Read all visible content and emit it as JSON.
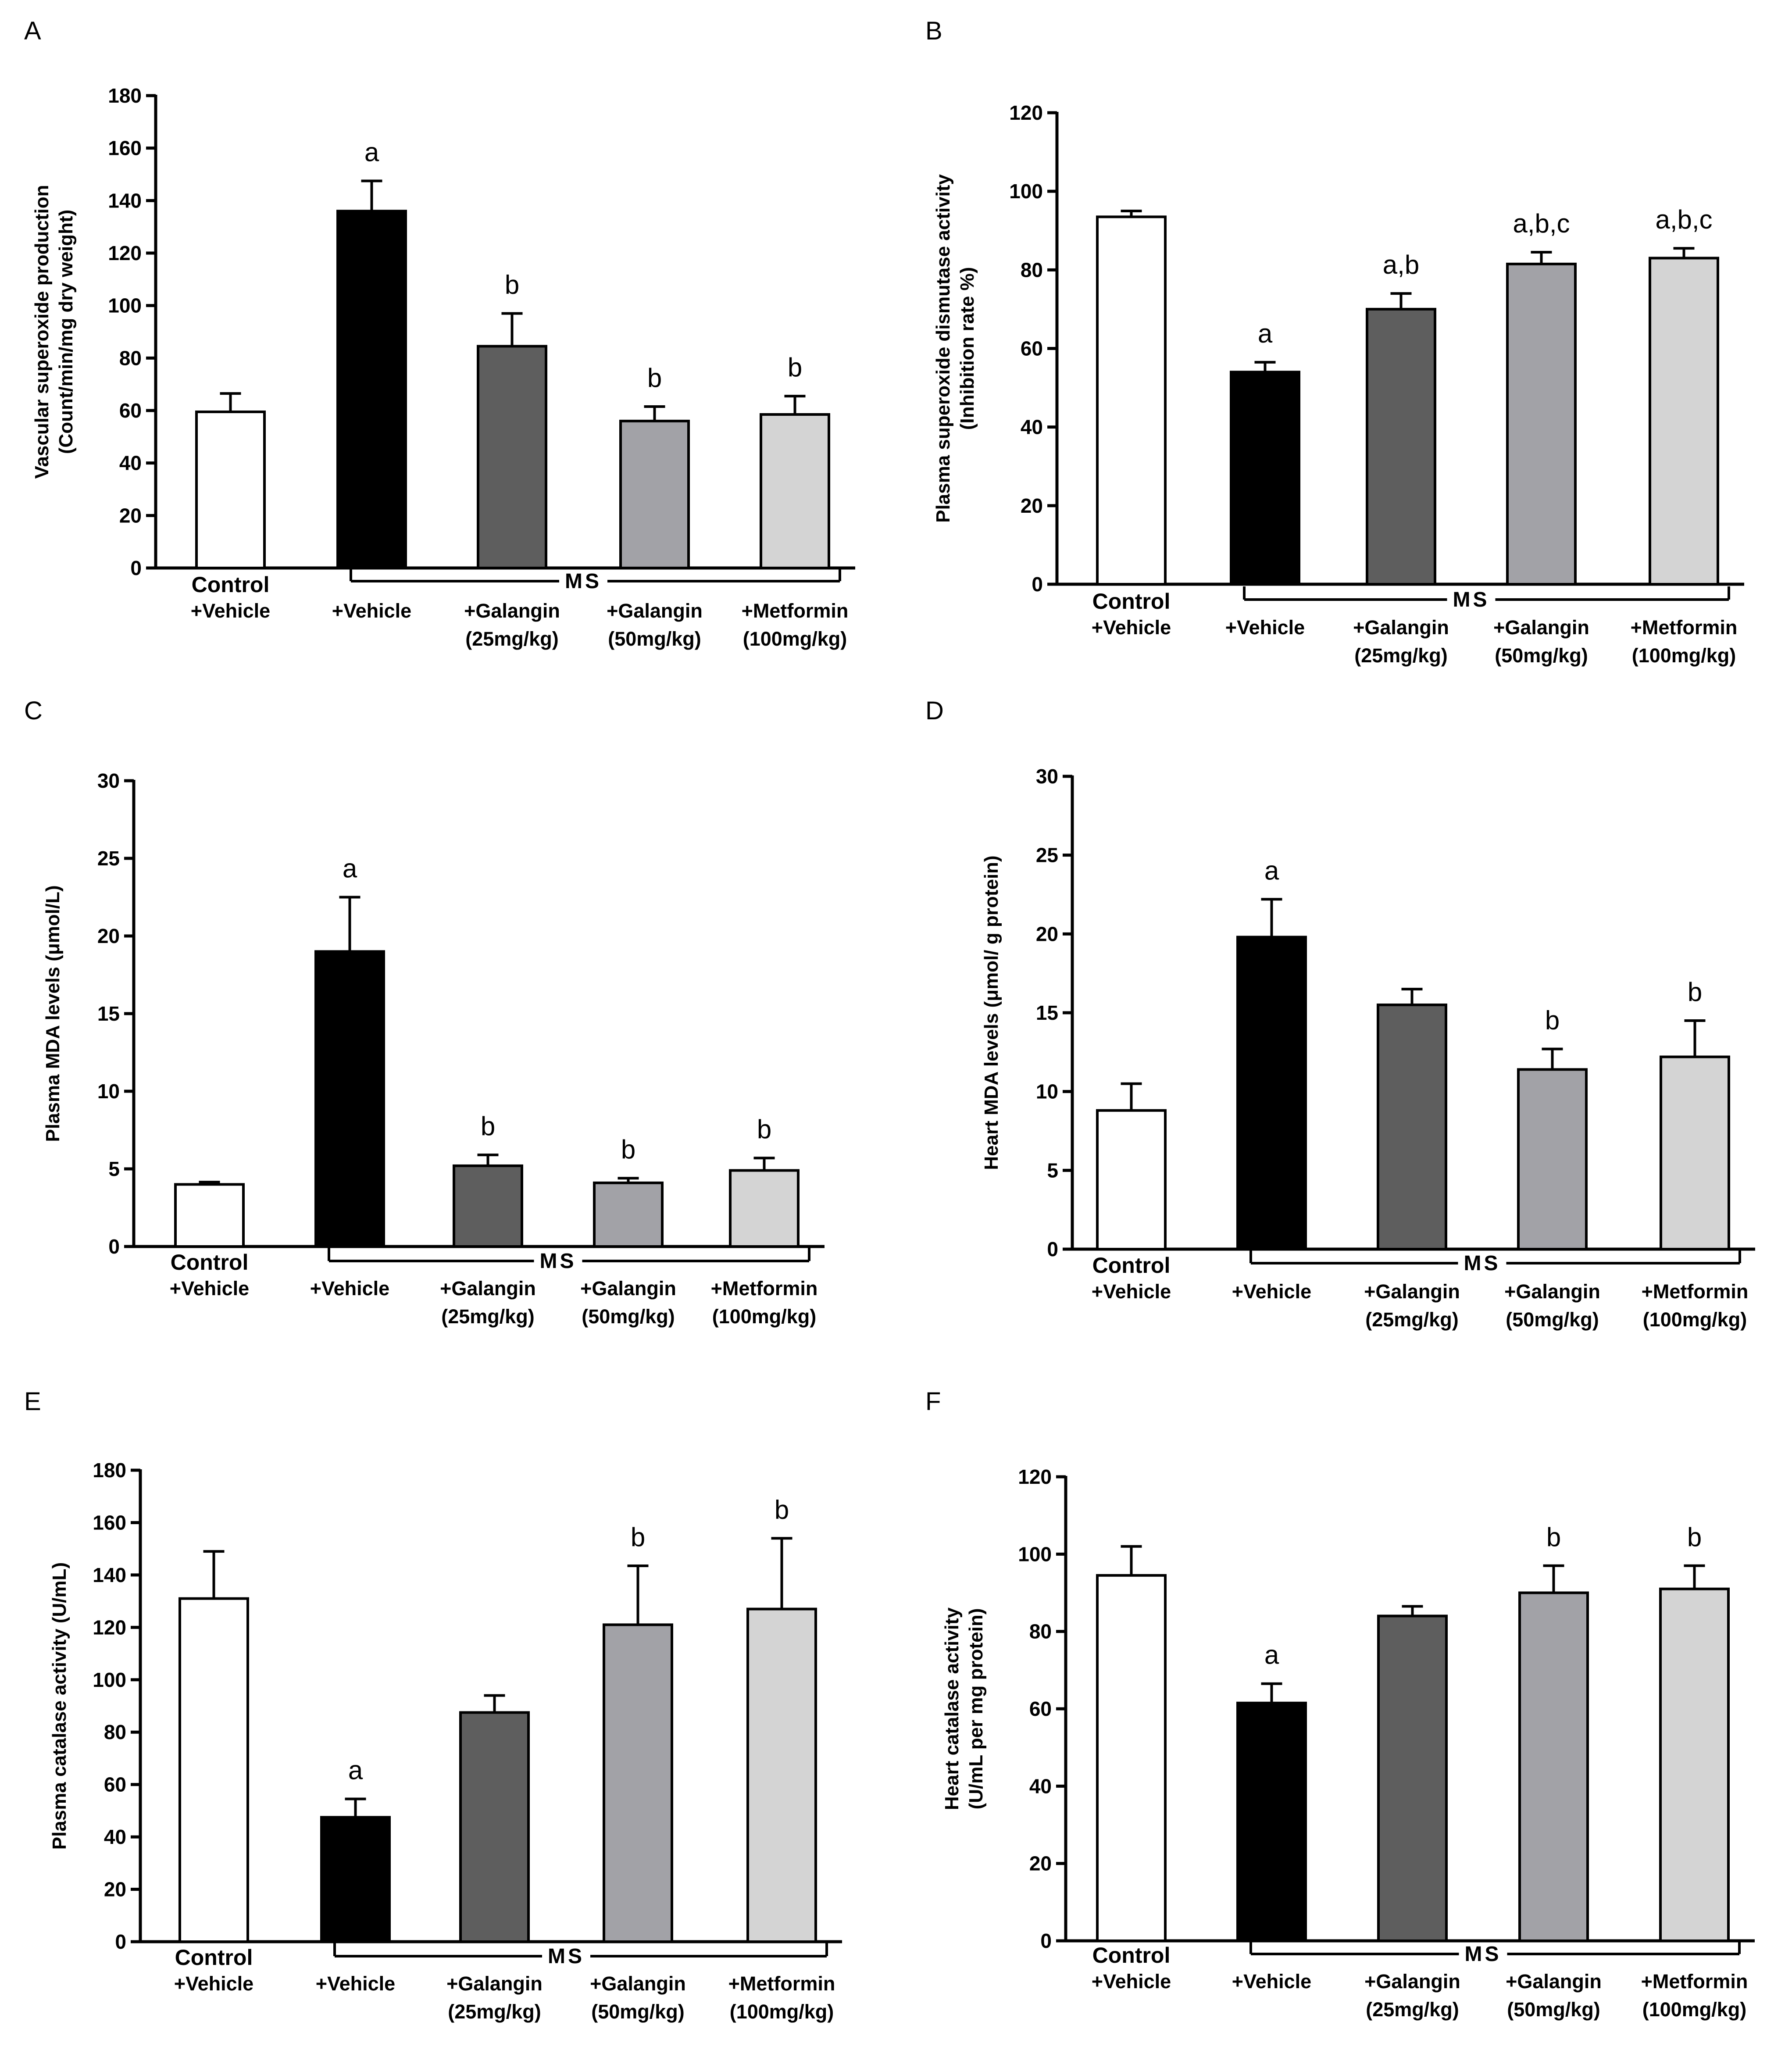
{
  "figure": {
    "ms_label": "MS",
    "groups": [
      {
        "line1": "Control",
        "line2": "+Vehicle"
      },
      {
        "line1": "+Vehicle",
        "line2": ""
      },
      {
        "line1": "+Galangin",
        "line2": "(25mg/kg)"
      },
      {
        "line1": "+Galangin",
        "line2": "(50mg/kg)"
      },
      {
        "line1": "+Metformin",
        "line2": "(100mg/kg)"
      }
    ],
    "colors": [
      "#ffffff",
      "#000000",
      "#5e5e5e",
      "#a2a2a7",
      "#d4d4d4"
    ]
  },
  "chart_data": [
    {
      "panel": "A",
      "type": "bar",
      "ylabel_line1": "Vascular superoxide production",
      "ylabel_line2": "(Count/min/mg dry weight)",
      "ylim": [
        0,
        180
      ],
      "yticks": [
        0,
        20,
        40,
        60,
        80,
        100,
        120,
        140,
        160,
        180
      ],
      "categories": [
        "Control +Vehicle",
        "MS +Vehicle",
        "MS +Galangin (25mg/kg)",
        "MS +Galangin (50mg/kg)",
        "MS +Metformin (100mg/kg)"
      ],
      "values": [
        59.5,
        136,
        84.5,
        56,
        58.5
      ],
      "errors": [
        7,
        11.5,
        12.5,
        5.5,
        7
      ],
      "annotations": [
        "",
        "a",
        "b",
        "b",
        "b"
      ]
    },
    {
      "panel": "B",
      "type": "bar",
      "ylabel_line1": "Plasma superoxide dismutase activity",
      "ylabel_line2": "(Inhibition rate %)",
      "ylim": [
        0,
        120
      ],
      "yticks": [
        0,
        20,
        40,
        60,
        80,
        100,
        120
      ],
      "categories": [
        "Control +Vehicle",
        "MS +Vehicle",
        "MS +Galangin (25mg/kg)",
        "MS +Galangin (50mg/kg)",
        "MS +Metformin (100mg/kg)"
      ],
      "values": [
        93.5,
        54,
        70,
        81.5,
        83
      ],
      "errors": [
        1.5,
        2.5,
        4,
        3,
        2.5
      ],
      "annotations": [
        "",
        "a",
        "a,b",
        "a,b,c",
        "a,b,c"
      ]
    },
    {
      "panel": "C",
      "type": "bar",
      "ylabel_line1": "Plasma MDA levels (μmol/L)",
      "ylabel_line2": "",
      "ylim": [
        0,
        30
      ],
      "yticks": [
        0,
        5,
        10,
        15,
        20,
        25,
        30
      ],
      "categories": [
        "Control +Vehicle",
        "MS +Vehicle",
        "MS +Galangin (25mg/kg)",
        "MS +Galangin (50mg/kg)",
        "MS +Metformin (100mg/kg)"
      ],
      "values": [
        4,
        19,
        5.2,
        4.1,
        4.9
      ],
      "errors": [
        0.15,
        3.5,
        0.7,
        0.3,
        0.8
      ],
      "annotations": [
        "",
        "a",
        "b",
        "b",
        "b"
      ]
    },
    {
      "panel": "D",
      "type": "bar",
      "ylabel_line1": "Heart MDA levels (μmol/ g protein)",
      "ylabel_line2": "",
      "ylim": [
        0,
        30
      ],
      "yticks": [
        0,
        5,
        10,
        15,
        20,
        25,
        30
      ],
      "categories": [
        "Control +Vehicle",
        "MS +Vehicle",
        "MS +Galangin (25mg/kg)",
        "MS +Galangin (50mg/kg)",
        "MS +Metformin (100mg/kg)"
      ],
      "values": [
        8.8,
        19.8,
        15.5,
        11.4,
        12.2
      ],
      "errors": [
        1.7,
        2.4,
        1.0,
        1.3,
        2.3
      ],
      "annotations": [
        "",
        "a",
        "",
        "b",
        "b"
      ]
    },
    {
      "panel": "E",
      "type": "bar",
      "ylabel_line1": "Plasma catalase activity (U/mL)",
      "ylabel_line2": "",
      "ylim": [
        0,
        180
      ],
      "yticks": [
        0,
        20,
        40,
        60,
        80,
        100,
        120,
        140,
        160,
        180
      ],
      "categories": [
        "Control +Vehicle",
        "MS +Vehicle",
        "MS +Galangin (25mg/kg)",
        "MS +Galangin (50mg/kg)",
        "MS +Metformin (100mg/kg)"
      ],
      "values": [
        131,
        47.5,
        87.5,
        121,
        127
      ],
      "errors": [
        18,
        7,
        6.5,
        22.5,
        27
      ],
      "annotations": [
        "",
        "a",
        "",
        "b",
        "b"
      ]
    },
    {
      "panel": "F",
      "type": "bar",
      "ylabel_line1": "Heart catalase activity",
      "ylabel_line2": "(U/mL per mg protein)",
      "ylim": [
        0,
        120
      ],
      "yticks": [
        0,
        20,
        40,
        60,
        80,
        100,
        120
      ],
      "categories": [
        "Control +Vehicle",
        "MS +Vehicle",
        "MS +Galangin (25mg/kg)",
        "MS +Galangin (50mg/kg)",
        "MS +Metformin (100mg/kg)"
      ],
      "values": [
        94.5,
        61.5,
        84,
        90,
        91
      ],
      "errors": [
        7.5,
        5,
        2.5,
        7,
        6
      ],
      "annotations": [
        "",
        "a",
        "",
        "b",
        "b"
      ]
    }
  ]
}
